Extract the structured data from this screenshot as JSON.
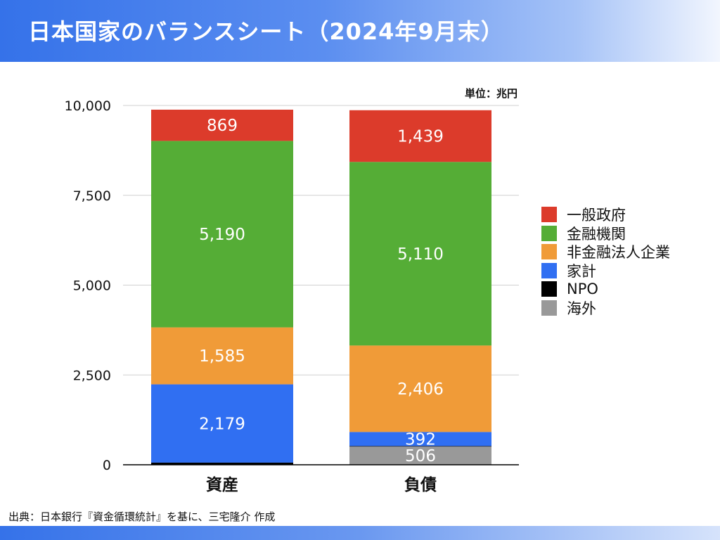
{
  "header": {
    "title": "日本国家のバランスシート（2024年9月末）"
  },
  "footer": {
    "source": "出典：日本銀行『資金循環統計』を基に、三宅隆介 作成"
  },
  "chart_data": {
    "type": "bar",
    "stacked": true,
    "unit_label": "単位：兆円",
    "categories": [
      "資産",
      "負債"
    ],
    "series": [
      {
        "name": "海外",
        "color": "#999999",
        "values": [
          0,
          506
        ],
        "labels": [
          "",
          "506"
        ]
      },
      {
        "name": "NPO",
        "color": "#000000",
        "values": [
          60,
          15
        ],
        "labels": [
          "",
          ""
        ]
      },
      {
        "name": "家計",
        "color": "#306ff2",
        "values": [
          2179,
          392
        ],
        "labels": [
          "2,179",
          "392"
        ]
      },
      {
        "name": "非金融法人企業",
        "color": "#f09b38",
        "values": [
          1585,
          2406
        ],
        "labels": [
          "1,585",
          "2,406"
        ]
      },
      {
        "name": "金融機関",
        "color": "#55ad36",
        "values": [
          5190,
          5110
        ],
        "labels": [
          "5,190",
          "5,110"
        ]
      },
      {
        "name": "一般政府",
        "color": "#dc3b2b",
        "values": [
          869,
          1439
        ],
        "labels": [
          "869",
          "1,439"
        ]
      }
    ],
    "ylim": [
      0,
      10000
    ],
    "yticks": [
      0,
      2500,
      5000,
      7500,
      10000
    ],
    "ytick_labels": [
      "0",
      "2,500",
      "5,000",
      "7,500",
      "10,000"
    ],
    "legend_order": [
      "一般政府",
      "金融機関",
      "非金融法人企業",
      "家計",
      "NPO",
      "海外"
    ],
    "legend_position": "right",
    "grid": true
  }
}
